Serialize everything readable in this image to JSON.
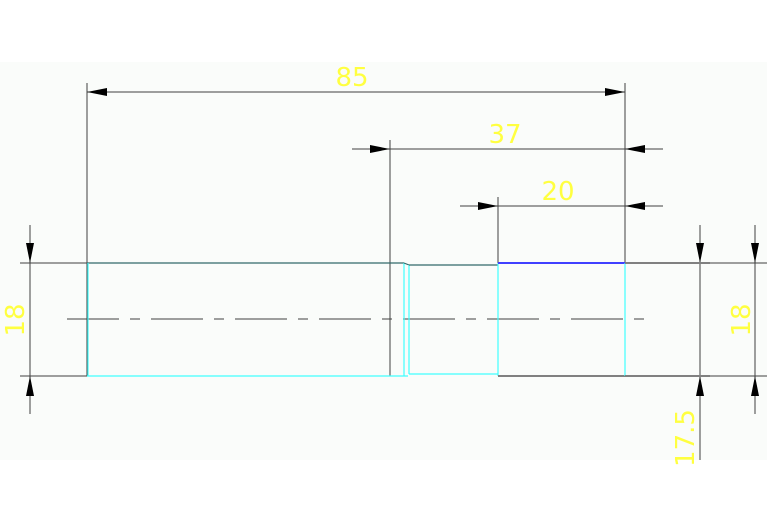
{
  "drawing": {
    "dimensions": {
      "overall_length": "85",
      "shoulder_length": "37",
      "end_length": "20",
      "left_diameter": "18",
      "right_diameter": "18",
      "reduced_diameter": "17.5"
    },
    "colors": {
      "background": "#fafcfa",
      "dimension_text": "#ffff40",
      "dimension_line": "#404040",
      "outline": "#40ffff",
      "top_edge": "#4040ff"
    }
  }
}
